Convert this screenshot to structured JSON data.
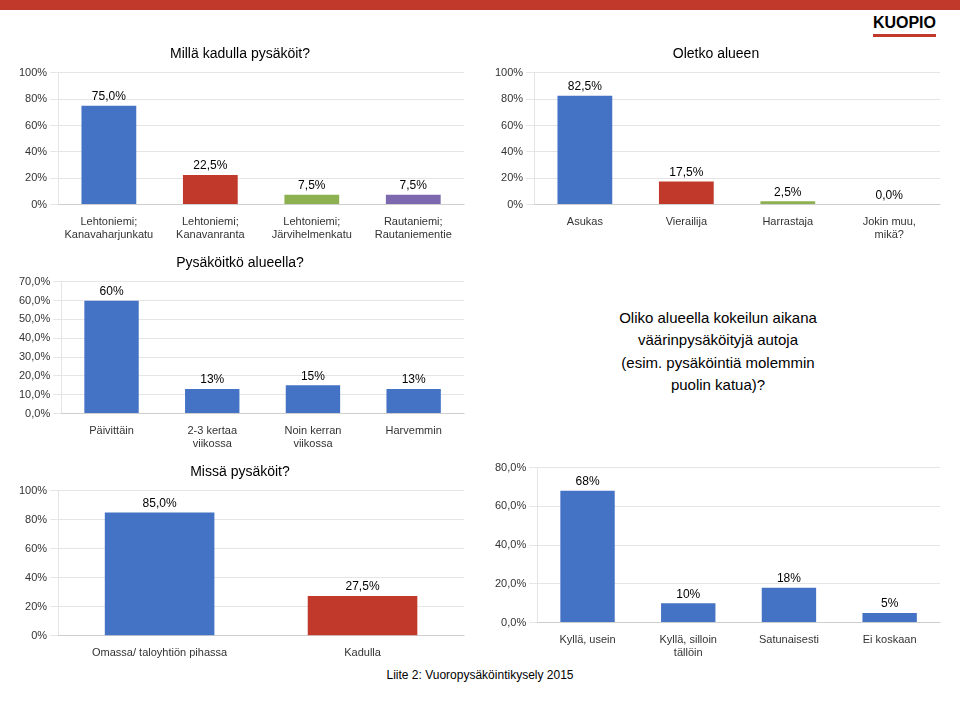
{
  "annotations": [
    "Liite 2: Vuoropysäköintikysely 2015",
    "KUOPIO"
  ],
  "chart_data": [
    {
      "type": "bar",
      "title": "Millä kadulla pysäköit?",
      "categories": [
        "Lehtoniemi;\nKanavaharjunkatu",
        "Lehtoniemi;\nKanavanranta",
        "Lehtoniemi;\nJärvihelmenkatu",
        "Rautaniemi;\nRautaniementie"
      ],
      "values": [
        75.0,
        22.5,
        7.5,
        7.5
      ],
      "value_labels": [
        "75,0%",
        "22,5%",
        "7,5%",
        "7,5%"
      ],
      "colors": [
        "#4472C4",
        "#C0392B",
        "#8DB050",
        "#7B68AE"
      ],
      "ylim": [
        0,
        100
      ],
      "yticks": [
        {
          "value": 0,
          "label": "0%"
        },
        {
          "value": 20,
          "label": "20%"
        },
        {
          "value": 40,
          "label": "40%"
        },
        {
          "value": 60,
          "label": "60%"
        },
        {
          "value": 80,
          "label": "80%"
        },
        {
          "value": 100,
          "label": "100%"
        }
      ],
      "grid": true,
      "data_labels": true
    },
    {
      "type": "bar",
      "title": "Pysäköitkö alueella?",
      "categories": [
        "Päivittäin",
        "2-3 kertaa\nviikossa",
        "Noin kerran\nviikossa",
        "Harvemmin"
      ],
      "values": [
        60,
        13,
        15,
        13
      ],
      "value_labels": [
        "60%",
        "13%",
        "15%",
        "13%"
      ],
      "colors": [
        "#4472C4",
        "#4472C4",
        "#4472C4",
        "#4472C4"
      ],
      "ylim": [
        0,
        70
      ],
      "yticks": [
        {
          "value": 0,
          "label": "0,0%"
        },
        {
          "value": 10,
          "label": "10,0%"
        },
        {
          "value": 20,
          "label": "20,0%"
        },
        {
          "value": 30,
          "label": "30,0%"
        },
        {
          "value": 40,
          "label": "40,0%"
        },
        {
          "value": 50,
          "label": "50,0%"
        },
        {
          "value": 60,
          "label": "60,0%"
        },
        {
          "value": 70,
          "label": "70,0%"
        }
      ],
      "grid": true,
      "data_labels": true
    },
    {
      "type": "bar",
      "title": "Missä pysäköit?",
      "categories": [
        "Omassa/ taloyhtiön pihassa",
        "Kadulla"
      ],
      "values": [
        85.0,
        27.5
      ],
      "value_labels": [
        "85,0%",
        "27,5%"
      ],
      "colors": [
        "#4472C4",
        "#C0392B"
      ],
      "ylim": [
        0,
        100
      ],
      "yticks": [
        {
          "value": 0,
          "label": "0%"
        },
        {
          "value": 20,
          "label": "20%"
        },
        {
          "value": 40,
          "label": "40%"
        },
        {
          "value": 60,
          "label": "60%"
        },
        {
          "value": 80,
          "label": "80%"
        },
        {
          "value": 100,
          "label": "100%"
        }
      ],
      "grid": true,
      "data_labels": true
    },
    {
      "type": "bar",
      "title": "Oletko alueen",
      "categories": [
        "Asukas",
        "Vierailija",
        "Harrastaja",
        "Jokin muu,\nmikä?"
      ],
      "values": [
        82.5,
        17.5,
        2.5,
        0.0
      ],
      "value_labels": [
        "82,5%",
        "17,5%",
        "2,5%",
        "0,0%"
      ],
      "colors": [
        "#4472C4",
        "#C0392B",
        "#8DB050",
        "#4472C4"
      ],
      "ylim": [
        0,
        100
      ],
      "yticks": [
        {
          "value": 0,
          "label": "0%"
        },
        {
          "value": 20,
          "label": "20%"
        },
        {
          "value": 40,
          "label": "40%"
        },
        {
          "value": 60,
          "label": "60%"
        },
        {
          "value": 80,
          "label": "80%"
        },
        {
          "value": 100,
          "label": "100%"
        }
      ],
      "grid": true,
      "data_labels": true
    },
    {
      "type": "bar",
      "title": "Oliko alueella kokeilun aikana\nväärinpysäköityjä autoja\n(esim. pysäköintiä molemmin\npuolin katua)?",
      "categories": [
        "Kyllä, usein",
        "Kyllä, silloin\ntällöin",
        "Satunaisesti",
        "Ei koskaan"
      ],
      "values": [
        68,
        10,
        18,
        5
      ],
      "value_labels": [
        "68%",
        "10%",
        "18%",
        "5%"
      ],
      "colors": [
        "#4472C4",
        "#4472C4",
        "#4472C4",
        "#4472C4"
      ],
      "ylim": [
        0,
        80
      ],
      "yticks": [
        {
          "value": 0,
          "label": "0,0%"
        },
        {
          "value": 20,
          "label": "20,0%"
        },
        {
          "value": 40,
          "label": "40,0%"
        },
        {
          "value": 60,
          "label": "60,0%"
        },
        {
          "value": 80,
          "label": "80,0%"
        }
      ],
      "grid": true,
      "data_labels": true
    }
  ]
}
